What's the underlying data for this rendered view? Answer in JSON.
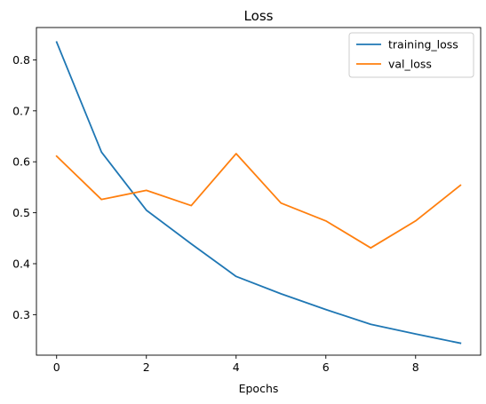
{
  "chart_data": {
    "type": "line",
    "title": "Loss",
    "xlabel": "Epochs",
    "ylabel": "",
    "x": [
      0,
      1,
      2,
      3,
      4,
      5,
      6,
      7,
      8,
      9
    ],
    "xlim": [
      -0.45,
      9.45
    ],
    "ylim": [
      0.2205,
      0.8635
    ],
    "xticks": [
      0,
      2,
      4,
      6,
      8
    ],
    "yticks": [
      0.3,
      0.4,
      0.5,
      0.6,
      0.7,
      0.8
    ],
    "grid": false,
    "legend_position": "top-right",
    "series": [
      {
        "name": "training_loss",
        "color": "#1f77b4",
        "values": [
          0.835,
          0.619,
          0.505,
          0.439,
          0.375,
          0.341,
          0.31,
          0.281,
          0.262,
          0.244
        ]
      },
      {
        "name": "val_loss",
        "color": "#ff7f0e",
        "values": [
          0.611,
          0.526,
          0.544,
          0.514,
          0.616,
          0.519,
          0.484,
          0.431,
          0.484,
          0.554
        ]
      }
    ]
  }
}
